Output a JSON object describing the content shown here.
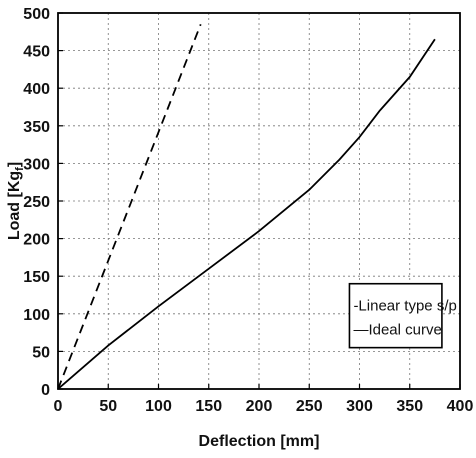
{
  "chart_data": {
    "type": "line",
    "xlabel": "Deflection  [mm]",
    "ylabel": "Load  [Kg",
    "ylabel_subscript": "f",
    "ylabel_suffix": "]",
    "xlim": [
      0,
      400
    ],
    "ylim": [
      0,
      500
    ],
    "xticks": [
      "0",
      "50",
      "100",
      "150",
      "200",
      "250",
      "300",
      "350",
      "400"
    ],
    "yticks": [
      "0",
      "50",
      "100",
      "150",
      "200",
      "250",
      "300",
      "350",
      "400",
      "450",
      "500"
    ],
    "grid": true,
    "legend_position": "bottom-right",
    "series": [
      {
        "name": "-Linear type s/p",
        "style": "dashed",
        "color": "#000000",
        "x": [
          0,
          142
        ],
        "y": [
          0,
          485
        ]
      },
      {
        "name": "—Ideal curve",
        "style": "solid",
        "color": "#000000",
        "x": [
          0,
          50,
          100,
          150,
          200,
          250,
          280,
          300,
          320,
          350,
          375
        ],
        "y": [
          0,
          58,
          110,
          160,
          210,
          265,
          305,
          335,
          370,
          415,
          465
        ]
      }
    ]
  }
}
